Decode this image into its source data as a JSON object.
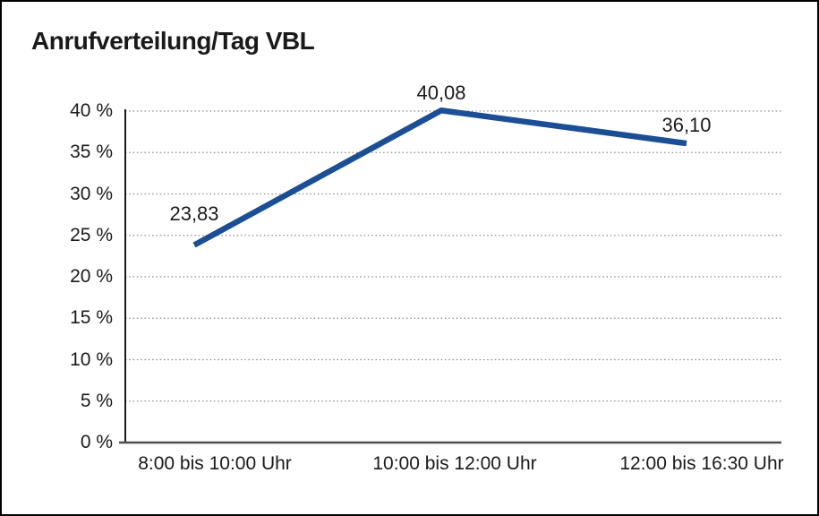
{
  "chart_data": {
    "type": "line",
    "title": "Anrufverteilung/Tag VBL",
    "categories": [
      "8:00 bis 10:00 Uhr",
      "10:00 bis 12:00 Uhr",
      "12:00 bis 16:30 Uhr"
    ],
    "values": [
      23.83,
      40.08,
      36.1
    ],
    "value_labels": [
      "23,83",
      "40,08",
      "36,10"
    ],
    "y_ticks": [
      0,
      5,
      10,
      15,
      20,
      25,
      30,
      35,
      40
    ],
    "y_tick_labels": [
      "0 %",
      "5 %",
      "10 %",
      "15 %",
      "20 %",
      "25 %",
      "30 %",
      "35 %",
      "40 %"
    ],
    "ylim": [
      0,
      40
    ],
    "xlabel": "",
    "ylabel": "",
    "grid": "horizontal-dotted",
    "legend_position": "none",
    "line_color": "#1b4e94",
    "grid_color": "#8c8c8c",
    "axis_color": "#1a1a1a",
    "baseline_color": "#4d4d4d",
    "text_color": "#1a1a1a",
    "background_color": "#ffffff",
    "border_color": "#000000"
  }
}
